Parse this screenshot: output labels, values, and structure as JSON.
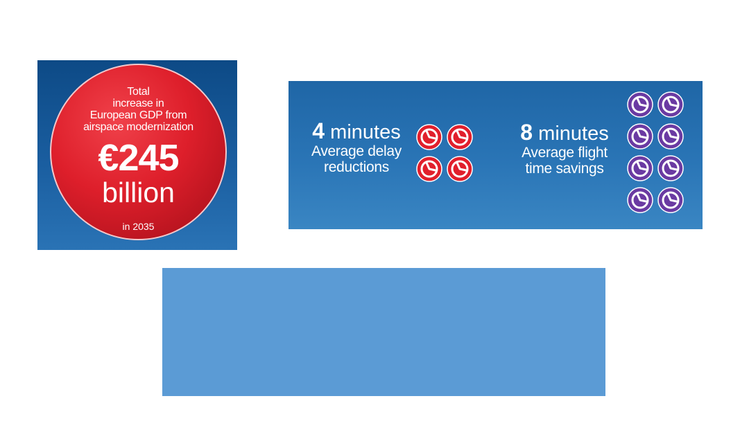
{
  "gdp": {
    "caption_lines": [
      "Total",
      "increase in",
      "European GDP from",
      "airspace modernization"
    ],
    "amount": "€245",
    "unit": "billion",
    "year": "in 2035",
    "colors": {
      "panel": "#1a5ea0",
      "circle": "#de1f2b",
      "text": "#ffffff"
    }
  },
  "delay": {
    "number": "4",
    "unit_word": "minutes",
    "description_lines": [
      "Average delay",
      "reductions"
    ],
    "clock_count": 4,
    "icon": "red-clock-icon",
    "clock_color": "#e11f2c"
  },
  "flight": {
    "number": "8",
    "unit_word": "minutes",
    "description_lines": [
      "Average flight",
      "time savings"
    ],
    "clock_count": 8,
    "icon": "purple-clock-icon",
    "clock_color": "#6a3aa2"
  },
  "time_panel_color": "#2a75b6",
  "blank_block_color": "#5b9bd5"
}
